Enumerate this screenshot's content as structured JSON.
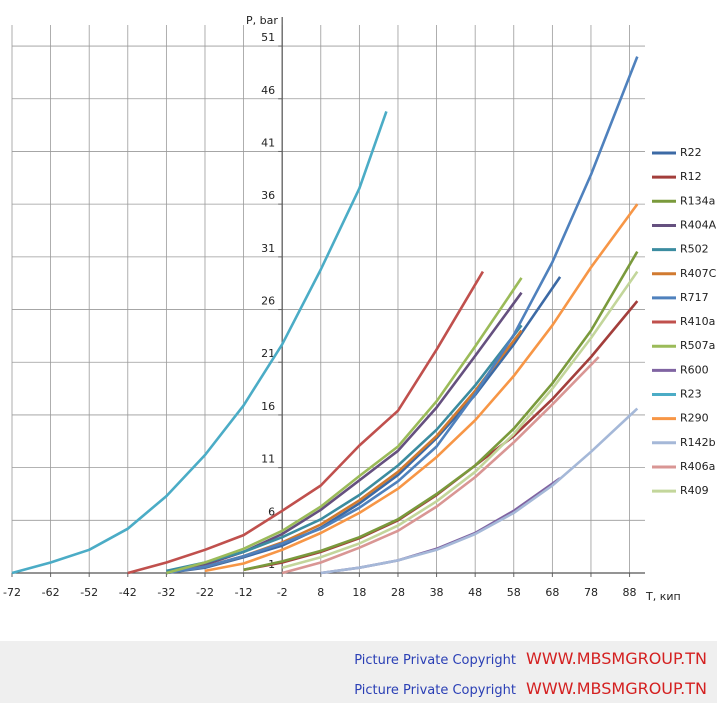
{
  "chart_data": {
    "type": "line",
    "y_label": "P, bar",
    "x_label": "T, кип",
    "xlim": [
      -72,
      92
    ],
    "ylim": [
      1,
      53
    ],
    "xticks": [
      -72,
      -62,
      -52,
      -42,
      -32,
      -22,
      -12,
      -2,
      8,
      18,
      28,
      38,
      48,
      58,
      68,
      78,
      88
    ],
    "yticks": [
      1,
      6,
      11,
      16,
      21,
      26,
      31,
      36,
      41,
      46,
      51
    ],
    "y_axis_at": -2,
    "grid": true,
    "legend": "right",
    "series": [
      {
        "name": "R22",
        "color": "#3c6aa5",
        "x": [
          -32,
          -22,
          -12,
          -2,
          8,
          18,
          28,
          38,
          48,
          58,
          70
        ],
        "values": [
          1.0,
          1.5,
          2.5,
          3.6,
          5.3,
          7.6,
          10.3,
          13.8,
          17.9,
          22.7,
          29.1
        ]
      },
      {
        "name": "R12",
        "color": "#a33e3b",
        "x": [
          -12,
          -2,
          8,
          18,
          28,
          38,
          48,
          58,
          68,
          78,
          90
        ],
        "values": [
          1.3,
          2.0,
          3.0,
          4.3,
          6.0,
          8.4,
          11.2,
          14.0,
          17.5,
          21.5,
          26.8
        ]
      },
      {
        "name": "R134a",
        "color": "#7a9a3c",
        "x": [
          -12,
          -2,
          8,
          18,
          28,
          38,
          48,
          58,
          68,
          78,
          90
        ],
        "values": [
          1.3,
          2.1,
          3.1,
          4.4,
          6.1,
          8.5,
          11.2,
          14.7,
          19.0,
          24.0,
          31.5
        ]
      },
      {
        "name": "R404A",
        "color": "#65507f",
        "x": [
          -32,
          -22,
          -12,
          -2,
          8,
          18,
          28,
          38,
          48,
          60
        ],
        "values": [
          1.0,
          1.8,
          3.0,
          4.7,
          7.0,
          9.8,
          12.6,
          16.7,
          21.6,
          27.6
        ]
      },
      {
        "name": "R502",
        "color": "#3b8ca0",
        "x": [
          -32,
          -22,
          -12,
          -2,
          8,
          18,
          28,
          38,
          48,
          60
        ],
        "values": [
          1.2,
          2.0,
          3.0,
          4.4,
          6.1,
          8.4,
          11.2,
          14.6,
          18.8,
          24.5
        ]
      },
      {
        "name": "R407C",
        "color": "#d17a30",
        "x": [
          -32,
          -22,
          -12,
          -2,
          8,
          18,
          28,
          38,
          48,
          60
        ],
        "values": [
          1.0,
          1.6,
          2.6,
          3.9,
          5.6,
          7.9,
          10.6,
          14.0,
          18.3,
          24.0
        ]
      },
      {
        "name": "R717",
        "color": "#4f81bd",
        "x": [
          -32,
          -22,
          -12,
          -2,
          8,
          18,
          28,
          38,
          48,
          58,
          68,
          78,
          90
        ],
        "values": [
          1.0,
          1.6,
          2.6,
          3.8,
          5.2,
          7.2,
          9.7,
          13.0,
          18.0,
          23.6,
          30.5,
          38.8,
          50.0
        ]
      },
      {
        "name": "R410a",
        "color": "#c0504d",
        "x": [
          -42,
          -32,
          -22,
          -12,
          -2,
          8,
          18,
          28,
          38,
          50
        ],
        "values": [
          1.0,
          2.0,
          3.2,
          4.6,
          6.9,
          9.3,
          13.1,
          16.4,
          22.2,
          29.6
        ]
      },
      {
        "name": "R507a",
        "color": "#9bbb59",
        "x": [
          -32,
          -22,
          -12,
          -2,
          8,
          18,
          28,
          38,
          48,
          60
        ],
        "values": [
          1.0,
          2.0,
          3.3,
          5.0,
          7.3,
          10.2,
          13.0,
          17.3,
          22.5,
          29.0
        ]
      },
      {
        "name": "R600",
        "color": "#8064a2",
        "x": [
          8,
          18,
          28,
          38,
          48,
          58,
          70
        ],
        "values": [
          1.0,
          1.5,
          2.2,
          3.3,
          4.8,
          6.9,
          10.0
        ]
      },
      {
        "name": "R23",
        "color": "#4bacc6",
        "x": [
          -72,
          -62,
          -52,
          -42,
          -32,
          -22,
          -12,
          -2,
          8,
          18,
          25
        ],
        "values": [
          1.0,
          2.0,
          3.2,
          5.2,
          8.3,
          12.2,
          16.9,
          22.7,
          29.8,
          37.5,
          44.8
        ]
      },
      {
        "name": "R290",
        "color": "#f79646",
        "x": [
          -22,
          -12,
          -2,
          8,
          18,
          28,
          38,
          48,
          58,
          68,
          78,
          90
        ],
        "values": [
          1.2,
          1.9,
          3.2,
          4.8,
          6.7,
          9.0,
          12.0,
          15.5,
          19.7,
          24.5,
          30.0,
          36.0
        ]
      },
      {
        "name": "R142b",
        "color": "#a5b8d8",
        "x": [
          8,
          18,
          28,
          38,
          48,
          58,
          68,
          78,
          90
        ],
        "values": [
          1.0,
          1.5,
          2.2,
          3.2,
          4.7,
          6.7,
          9.3,
          12.5,
          16.6
        ]
      },
      {
        "name": "R406a",
        "color": "#d99694",
        "x": [
          -2,
          8,
          18,
          28,
          38,
          48,
          58,
          68,
          80
        ],
        "values": [
          1.0,
          2.0,
          3.4,
          5.0,
          7.3,
          10.1,
          13.4,
          17.0,
          21.5
        ]
      },
      {
        "name": "R409",
        "color": "#c3d69b",
        "x": [
          -2,
          8,
          18,
          28,
          38,
          48,
          58,
          68,
          78,
          90
        ],
        "values": [
          1.5,
          2.5,
          3.8,
          5.5,
          7.8,
          10.6,
          14.2,
          18.5,
          23.3,
          29.6
        ]
      }
    ]
  },
  "footer": [
    {
      "text": "Picture Private Copyright",
      "link": "WWW.MBSMGROUP.TN"
    },
    {
      "text": "Picture Private Copyright",
      "link": "WWW.MBSMGROUP.TN"
    }
  ]
}
